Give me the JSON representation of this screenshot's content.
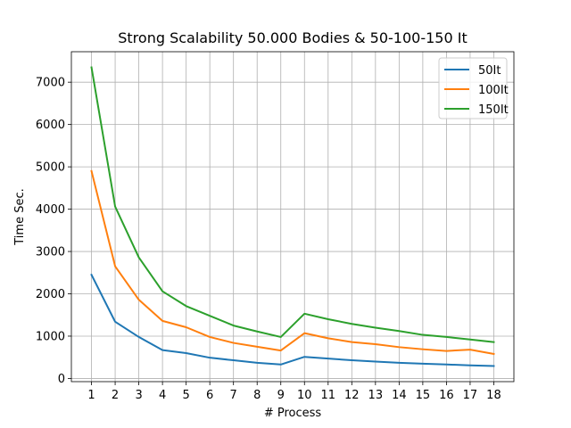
{
  "chart_data": {
    "type": "line",
    "title": "Strong Scalability 50.000 Bodies & 50-100-150 It",
    "xlabel": "# Process",
    "ylabel": "Time Sec.",
    "x": [
      1,
      2,
      3,
      4,
      5,
      6,
      7,
      8,
      9,
      10,
      11,
      12,
      13,
      14,
      15,
      16,
      17,
      18
    ],
    "x_ticks": [
      "1",
      "2",
      "3",
      "4",
      "5",
      "6",
      "7",
      "8",
      "9",
      "10",
      "11",
      "12",
      "13",
      "14",
      "15",
      "16",
      "17",
      "18"
    ],
    "y_ticks": [
      "0",
      "1000",
      "2000",
      "3000",
      "4000",
      "5000",
      "6000",
      "7000"
    ],
    "xlim": [
      0.15,
      18.85
    ],
    "ylim": [
      -75,
      7720
    ],
    "grid": true,
    "legend_position": "top-right",
    "series": [
      {
        "name": "50It",
        "color": "#1f77b4",
        "values": [
          2450,
          1340,
          980,
          670,
          600,
          490,
          430,
          370,
          330,
          510,
          470,
          430,
          400,
          370,
          350,
          330,
          310,
          295
        ]
      },
      {
        "name": "100It",
        "color": "#ff7f0e",
        "values": [
          4900,
          2650,
          1860,
          1360,
          1210,
          980,
          840,
          750,
          660,
          1070,
          950,
          860,
          810,
          740,
          690,
          650,
          680,
          580
        ]
      },
      {
        "name": "150It",
        "color": "#2ca02c",
        "values": [
          7350,
          4060,
          2860,
          2060,
          1710,
          1480,
          1250,
          1110,
          980,
          1530,
          1400,
          1290,
          1200,
          1120,
          1030,
          980,
          920,
          860
        ]
      }
    ]
  }
}
